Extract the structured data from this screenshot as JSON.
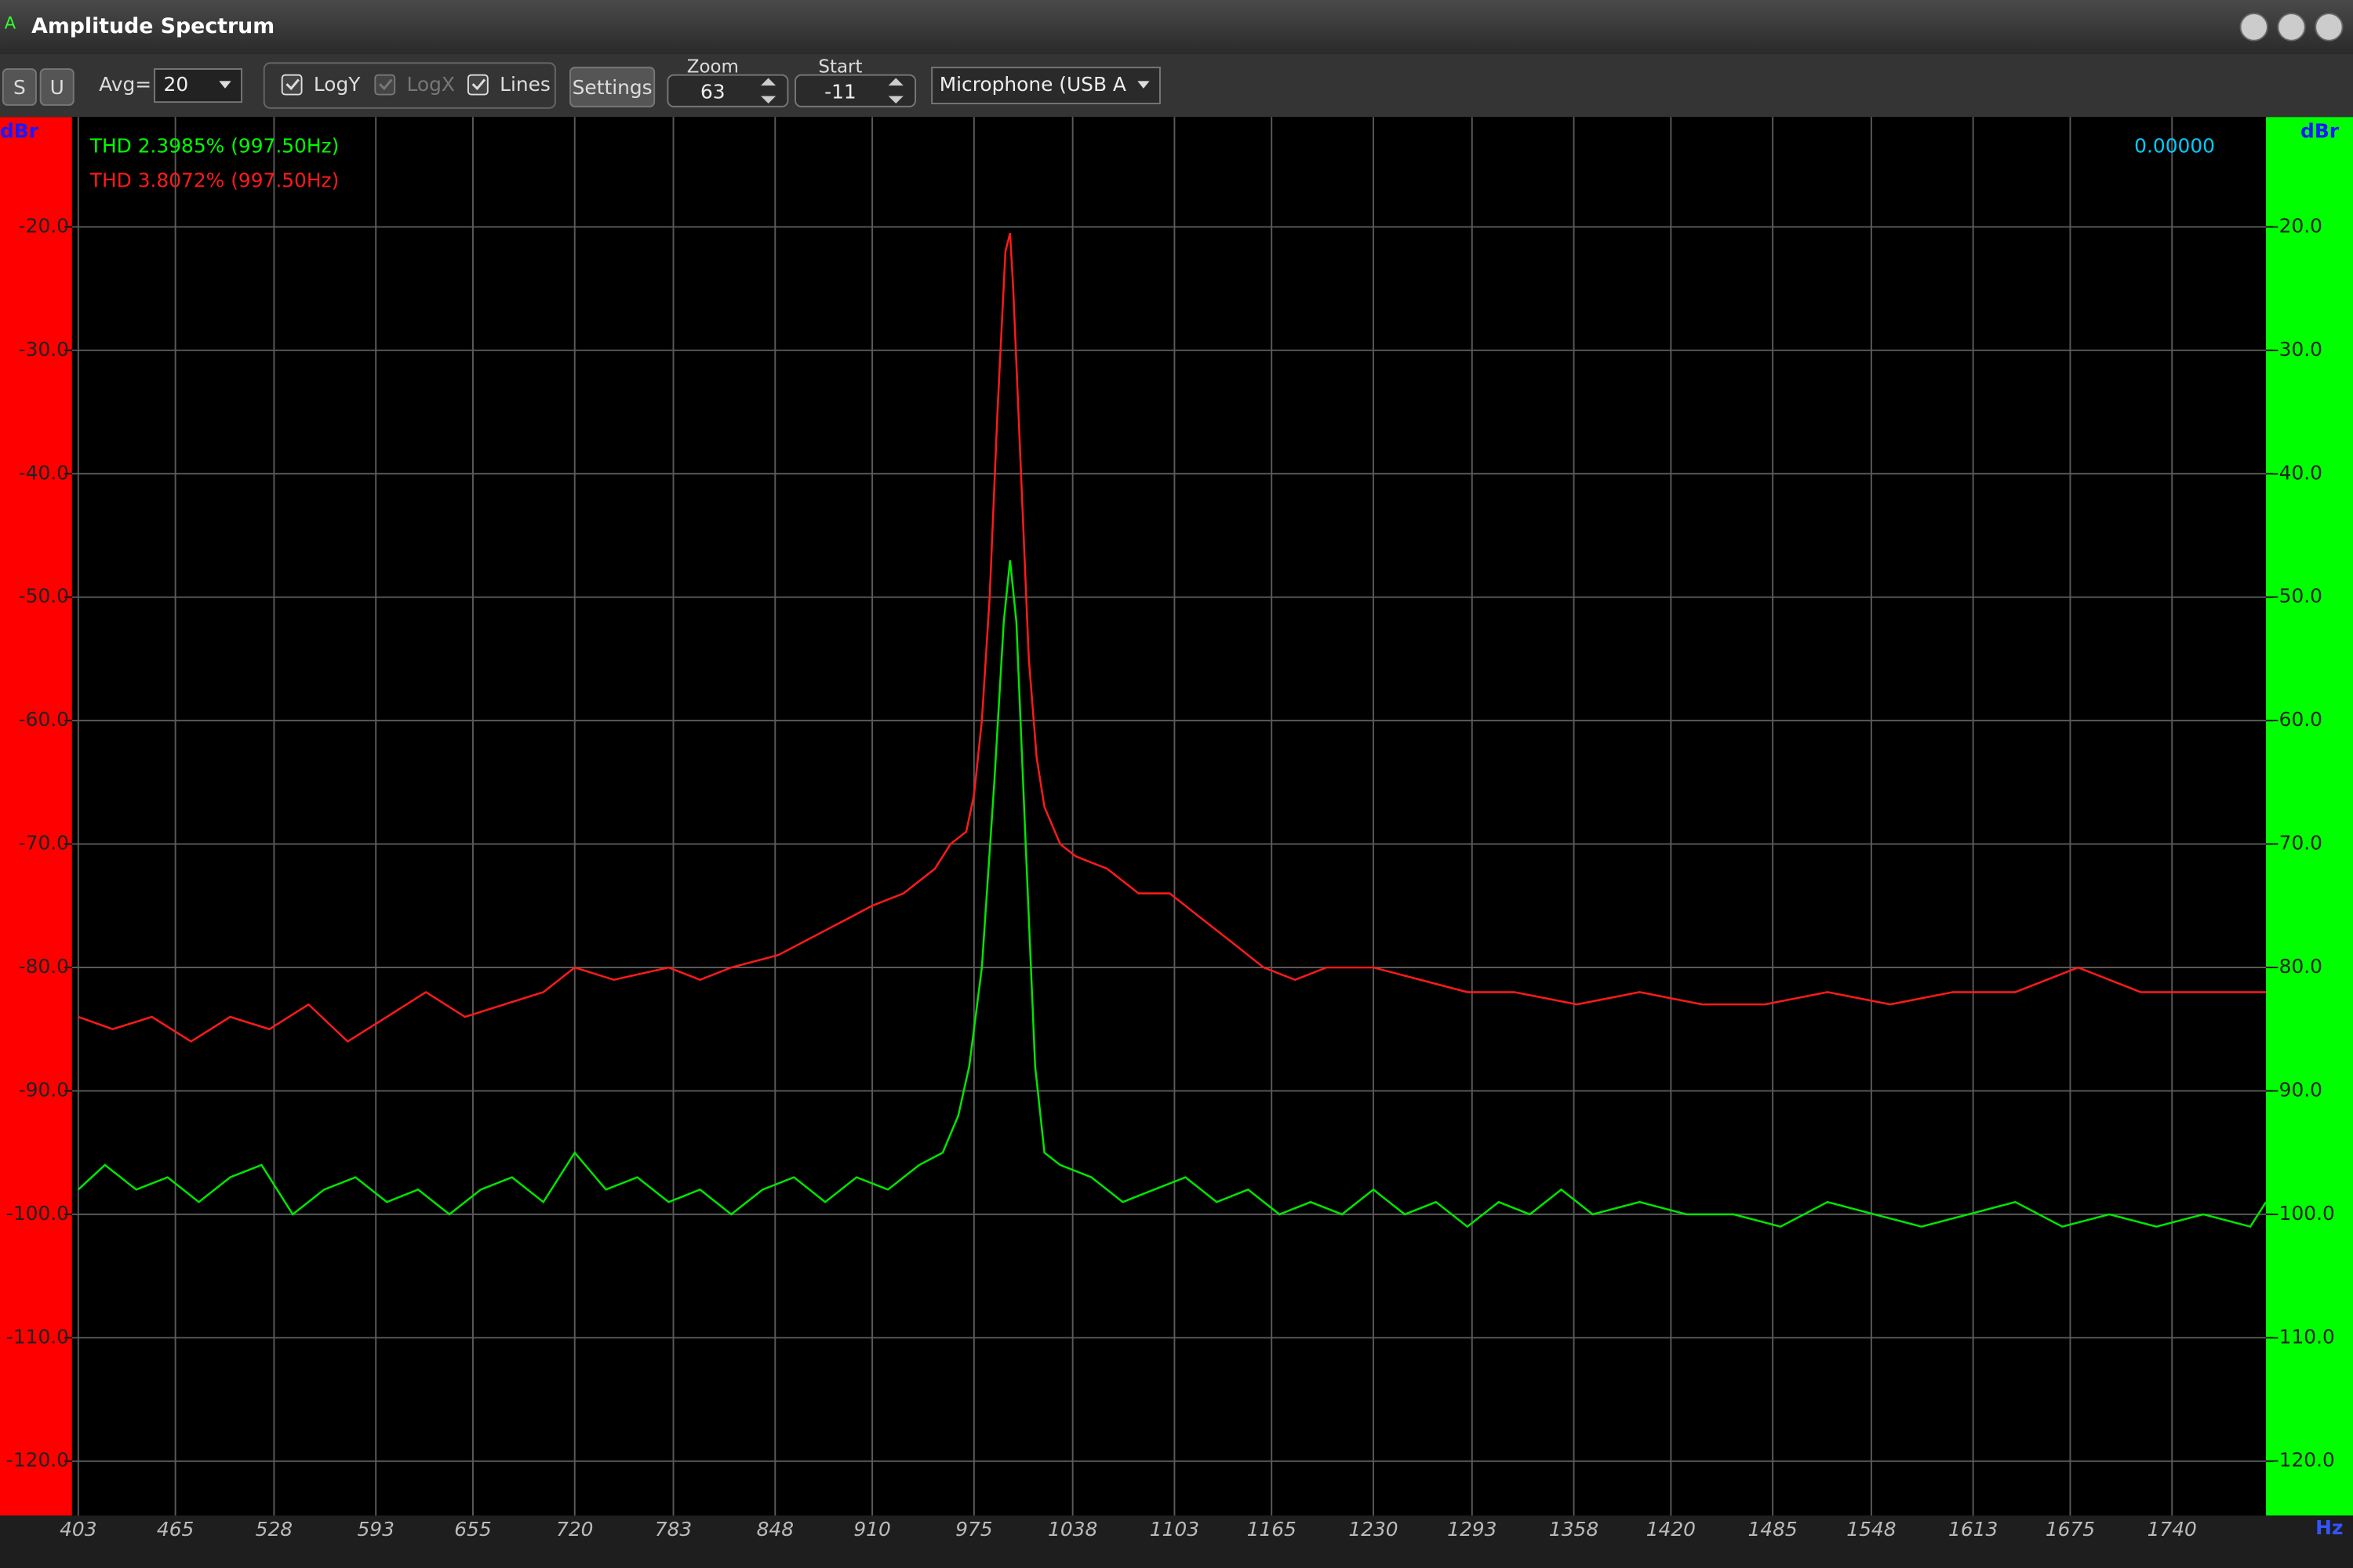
{
  "window": {
    "title": "Amplitude Spectrum"
  },
  "toolbar": {
    "buttons": [
      "S",
      "U"
    ],
    "avg_label": "Avg=",
    "avg_value": "20",
    "checkboxes": [
      {
        "label": "LogY",
        "checked": true,
        "enabled": true
      },
      {
        "label": "LogX",
        "checked": true,
        "enabled": false
      },
      {
        "label": "Lines",
        "checked": true,
        "enabled": true
      }
    ],
    "settings": "Settings",
    "zoom_label": "Zoom",
    "zoom_value": "63",
    "start_label": "Start",
    "start_value": "-11",
    "device": "Microphone (USB A"
  },
  "chart_data": {
    "type": "line",
    "y_label": "dBr",
    "x_label": "Hz",
    "cursor_value": "0.00000",
    "grid": true,
    "annotations": [
      {
        "text": "THD 2.3985% (997.50Hz)",
        "color": "#00ff00"
      },
      {
        "text": "THD 3.8072% (997.50Hz)",
        "color": "#ff1a1a"
      }
    ],
    "xlim": [
      399,
      1800
    ],
    "ylim": [
      -124.4,
      -11.1
    ],
    "xticks": [
      403,
      465,
      528,
      593,
      655,
      720,
      783,
      848,
      910,
      975,
      1038,
      1103,
      1165,
      1230,
      1293,
      1358,
      1420,
      1485,
      1548,
      1613,
      1675,
      1740
    ],
    "yticks": [
      {
        "value": -20,
        "label": "-20.0"
      },
      {
        "value": -30,
        "label": "-30.0"
      },
      {
        "value": -40,
        "label": "-40.0"
      },
      {
        "value": -50,
        "label": "-50.0"
      },
      {
        "value": -60,
        "label": "-60.0"
      },
      {
        "value": -70,
        "label": "-70.0"
      },
      {
        "value": -80,
        "label": "-80.0"
      },
      {
        "value": -90,
        "label": "-90.0"
      },
      {
        "value": -100,
        "label": "-100.0"
      },
      {
        "value": -110,
        "label": "-110.0"
      },
      {
        "value": -120,
        "label": "-120.0"
      }
    ],
    "series": [
      {
        "color": "#ff1a1a",
        "x": [
          403,
          425,
          450,
          475,
          500,
          525,
          550,
          575,
          600,
          625,
          650,
          675,
          700,
          720,
          745,
          780,
          800,
          820,
          850,
          865,
          880,
          895,
          910,
          930,
          950,
          960,
          970,
          975,
          980,
          985,
          990,
          995,
          998,
          1000,
          1005,
          1010,
          1015,
          1020,
          1030,
          1040,
          1060,
          1080,
          1100,
          1120,
          1140,
          1160,
          1180,
          1200,
          1230,
          1260,
          1290,
          1320,
          1360,
          1400,
          1440,
          1480,
          1520,
          1560,
          1600,
          1640,
          1680,
          1720,
          1760,
          1800
        ],
        "values": [
          -84,
          -85,
          -84,
          -86,
          -84,
          -85,
          -83,
          -86,
          -84,
          -82,
          -84,
          -83,
          -82,
          -80,
          -81,
          -80,
          -81,
          -80,
          -79,
          -78,
          -77,
          -76,
          -75,
          -74,
          -72,
          -70,
          -69,
          -66,
          -60,
          -50,
          -35,
          -22,
          -20.5,
          -25,
          -40,
          -55,
          -63,
          -67,
          -70,
          -71,
          -72,
          -74,
          -74,
          -76,
          -78,
          -80,
          -81,
          -80,
          -80,
          -81,
          -82,
          -82,
          -83,
          -82,
          -83,
          -83,
          -82,
          -83,
          -82,
          -82,
          -80,
          -82,
          -82,
          -82
        ]
      },
      {
        "color": "#00e600",
        "x": [
          403,
          420,
          440,
          460,
          480,
          500,
          520,
          540,
          560,
          580,
          600,
          620,
          640,
          660,
          680,
          700,
          720,
          740,
          760,
          780,
          800,
          820,
          840,
          860,
          880,
          900,
          920,
          940,
          955,
          965,
          972,
          980,
          988,
          994,
          998,
          1002,
          1008,
          1014,
          1020,
          1030,
          1050,
          1070,
          1090,
          1110,
          1130,
          1150,
          1170,
          1190,
          1210,
          1230,
          1250,
          1270,
          1290,
          1310,
          1330,
          1350,
          1370,
          1400,
          1430,
          1460,
          1490,
          1520,
          1550,
          1580,
          1610,
          1640,
          1670,
          1700,
          1730,
          1760,
          1790,
          1800
        ],
        "values": [
          -98,
          -96,
          -98,
          -97,
          -99,
          -97,
          -96,
          -100,
          -98,
          -97,
          -99,
          -98,
          -100,
          -98,
          -97,
          -99,
          -95,
          -98,
          -97,
          -99,
          -98,
          -100,
          -98,
          -97,
          -99,
          -97,
          -98,
          -96,
          -95,
          -92,
          -88,
          -80,
          -65,
          -52,
          -47,
          -52,
          -70,
          -88,
          -95,
          -96,
          -97,
          -99,
          -98,
          -97,
          -99,
          -98,
          -100,
          -99,
          -100,
          -98,
          -100,
          -99,
          -101,
          -99,
          -100,
          -98,
          -100,
          -99,
          -100,
          -100,
          -101,
          -99,
          -100,
          -101,
          -100,
          -99,
          -101,
          -100,
          -101,
          -100,
          -101,
          -99
        ]
      }
    ]
  }
}
